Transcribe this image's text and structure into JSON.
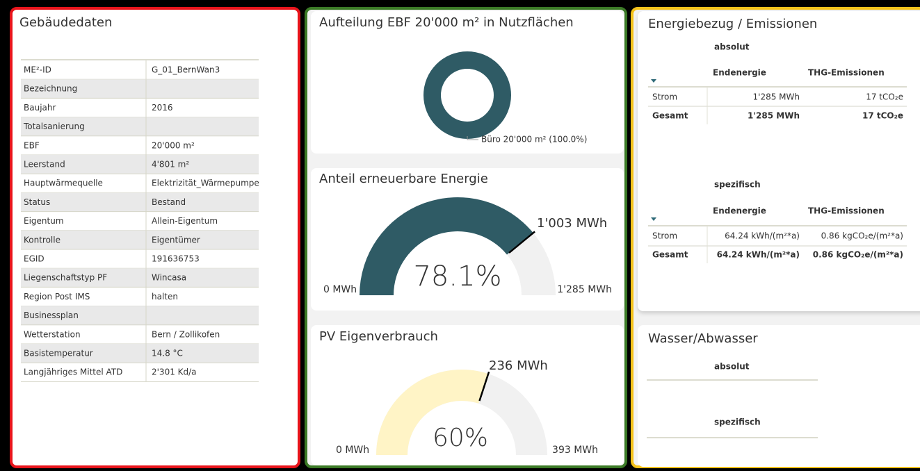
{
  "gebaeudedaten": {
    "title": "Gebäudedaten",
    "rows": [
      [
        "ME²-ID",
        "G_01_BernWan3"
      ],
      [
        "Bezeichnung",
        ""
      ],
      [
        "Baujahr",
        "2016"
      ],
      [
        "Totalsanierung",
        ""
      ],
      [
        "EBF",
        "20'000 m²"
      ],
      [
        "Leerstand",
        "4'801 m²"
      ],
      [
        "Hauptwärmequelle",
        "Elektrizität_Wärmepumpe"
      ],
      [
        "Status",
        "Bestand"
      ],
      [
        "Eigentum",
        "Allein-Eigentum"
      ],
      [
        "Kontrolle",
        "Eigentümer"
      ],
      [
        "EGID",
        "191636753"
      ],
      [
        "Liegenschaftstyp PF",
        "Wincasa"
      ],
      [
        "Region Post IMS",
        "halten"
      ],
      [
        "Businessplan",
        ""
      ],
      [
        "Wetterstation",
        "Bern / Zollikofen"
      ],
      [
        "Basistemperatur",
        "14.8 °C"
      ],
      [
        "Langjähriges Mittel ATD",
        "2'301 Kd/a"
      ]
    ]
  },
  "chart_data": [
    {
      "type": "pie",
      "title": "Aufteilung EBF 20'000 m² in Nutzflächen",
      "categories": [
        "Büro"
      ],
      "values": [
        20000
      ],
      "value_labels": [
        "Büro 20'000 m² (100.0%)"
      ],
      "color": "#2f5b65"
    },
    {
      "type": "gauge",
      "title": "Anteil erneuerbare Energie",
      "values": [
        1003
      ],
      "value_labels": [
        "1'003 MWh"
      ],
      "center_label": "78.1%",
      "ylim": [
        0,
        1285
      ],
      "yticks": [
        {
          "value": 0,
          "label": "0 MWh"
        },
        {
          "value": 1285,
          "label": "1'285 MWh"
        }
      ],
      "color": "#2f5b65"
    },
    {
      "type": "gauge",
      "title": "PV Eigenverbrauch",
      "values": [
        236
      ],
      "value_labels": [
        "236 MWh"
      ],
      "center_label": "60%",
      "ylim": [
        0,
        393
      ],
      "yticks": [
        {
          "value": 0,
          "label": "0 MWh"
        },
        {
          "value": 393,
          "label": "393 MWh"
        }
      ],
      "color": "#fff4c6"
    }
  ],
  "energiebezug": {
    "title": "Energiebezug / Emissionen",
    "absolut": {
      "label": "absolut",
      "header": [
        "Endenergie",
        "THG-Emissionen"
      ],
      "rows": [
        [
          "Strom",
          "1'285 MWh",
          "17 tCO₂e"
        ],
        [
          "Gesamt",
          "1'285 MWh",
          "17 tCO₂e"
        ]
      ]
    },
    "spezifisch": {
      "label": "spezifisch",
      "header": [
        "Endenergie",
        "THG-Emissionen"
      ],
      "rows": [
        [
          "Strom",
          "64.24 kWh/(m²*a)",
          "0.86 kgCO₂e/(m²*a)"
        ],
        [
          "Gesamt",
          "64.24 kWh/(m²*a)",
          "0.86 kgCO₂e/(m²*a)"
        ]
      ]
    }
  },
  "wasser": {
    "title": "Wasser/Abwasser",
    "absolut": "absolut",
    "spezifisch": "spezifisch"
  }
}
